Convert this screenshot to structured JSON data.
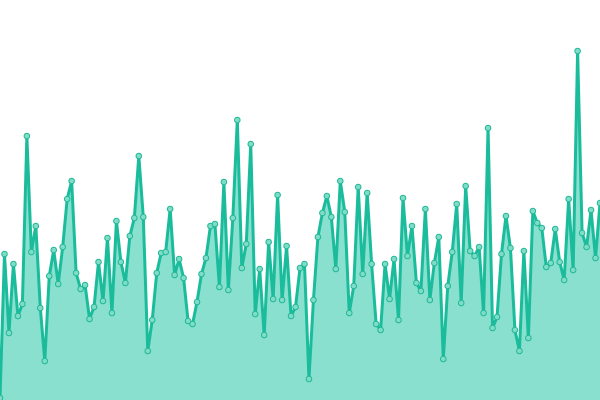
{
  "chart_data": {
    "type": "area",
    "title": "",
    "xlabel": "",
    "ylabel": "",
    "ylim": [
      0,
      400
    ],
    "grid": false,
    "legend": "none",
    "colors": {
      "line": "#1abc9c",
      "fill": "#8ae0cf",
      "point_fill": "#7fdcc8",
      "point_stroke": "#1fb894"
    },
    "values": [
      2,
      146,
      67,
      136,
      84,
      96,
      264,
      148,
      174,
      92,
      39,
      124,
      150,
      116,
      153,
      201,
      219,
      127,
      111,
      115,
      81,
      93,
      138,
      99,
      162,
      87,
      179,
      138,
      117,
      164,
      182,
      244,
      183,
      49,
      80,
      127,
      147,
      148,
      191,
      125,
      141,
      122,
      79,
      76,
      98,
      126,
      142,
      174,
      176,
      113,
      218,
      110,
      182,
      280,
      132,
      156,
      256,
      86,
      131,
      65,
      158,
      101,
      205,
      100,
      154,
      84,
      93,
      132,
      136,
      21,
      100,
      163,
      187,
      204,
      183,
      131,
      219,
      188,
      87,
      114,
      213,
      126,
      207,
      136,
      76,
      70,
      136,
      101,
      141,
      80,
      202,
      144,
      174,
      117,
      109,
      191,
      100,
      137,
      163,
      41,
      114,
      148,
      196,
      97,
      214,
      149,
      144,
      153,
      87,
      272,
      72,
      83,
      146,
      184,
      152,
      70,
      49,
      149,
      62,
      189,
      177,
      172,
      133,
      137,
      171,
      138,
      120,
      201,
      130,
      349,
      167,
      153,
      190,
      142,
      197
    ]
  }
}
